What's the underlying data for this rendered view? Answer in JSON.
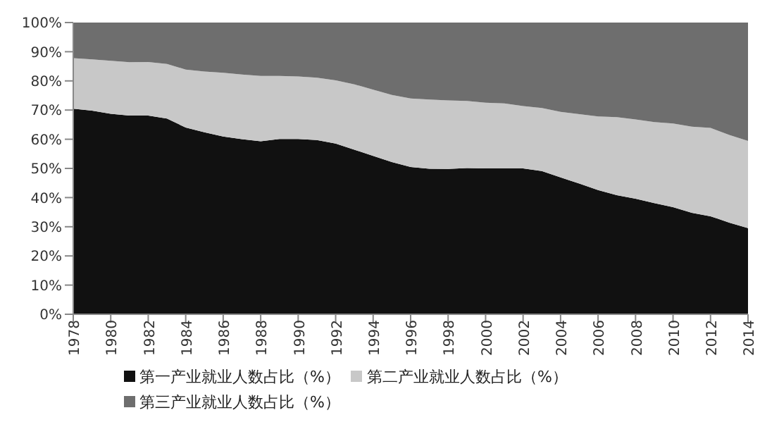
{
  "chart_data": {
    "type": "area",
    "stacked": true,
    "legend": "bottom",
    "grid": false,
    "x": [
      1978,
      1979,
      1980,
      1981,
      1982,
      1983,
      1984,
      1985,
      1986,
      1987,
      1988,
      1989,
      1990,
      1991,
      1992,
      1993,
      1994,
      1995,
      1996,
      1997,
      1998,
      1999,
      2000,
      2001,
      2002,
      2003,
      2004,
      2005,
      2006,
      2007,
      2008,
      2009,
      2010,
      2011,
      2012,
      2013,
      2014
    ],
    "xlim": [
      1978,
      2014
    ],
    "xticks": [
      1978,
      1980,
      1982,
      1984,
      1986,
      1988,
      1990,
      1992,
      1994,
      1996,
      1998,
      2000,
      2002,
      2004,
      2006,
      2008,
      2010,
      2012,
      2014
    ],
    "ylim": [
      0,
      100
    ],
    "yticks": [
      {
        "value": 0,
        "label": "0%"
      },
      {
        "value": 10,
        "label": "10%"
      },
      {
        "value": 20,
        "label": "20%"
      },
      {
        "value": 30,
        "label": "30%"
      },
      {
        "value": 40,
        "label": "40%"
      },
      {
        "value": 50,
        "label": "50%"
      },
      {
        "value": 60,
        "label": "60%"
      },
      {
        "value": 70,
        "label": "70%"
      },
      {
        "value": 80,
        "label": "80%"
      },
      {
        "value": 90,
        "label": "90%"
      },
      {
        "value": 100,
        "label": "100%"
      }
    ],
    "series": [
      {
        "name": "第一产业就业人数占比（%）",
        "color": "#111111",
        "values": [
          70.5,
          69.8,
          68.7,
          68.1,
          68.1,
          67.1,
          64.0,
          62.4,
          60.9,
          60.0,
          59.3,
          60.1,
          60.1,
          59.7,
          58.5,
          56.4,
          54.3,
          52.2,
          50.5,
          49.9,
          49.8,
          50.1,
          50.0,
          50.0,
          50.0,
          49.1,
          46.9,
          44.8,
          42.6,
          40.8,
          39.6,
          38.1,
          36.7,
          34.8,
          33.6,
          31.4,
          29.5
        ]
      },
      {
        "name": "第二产业就业人数占比（%）",
        "color": "#c8c8c8",
        "values": [
          17.3,
          17.6,
          18.2,
          18.3,
          18.4,
          18.7,
          19.9,
          20.8,
          21.9,
          22.2,
          22.4,
          21.6,
          21.4,
          21.4,
          21.7,
          22.4,
          22.7,
          23.0,
          23.5,
          23.7,
          23.5,
          23.0,
          22.5,
          22.3,
          21.4,
          21.6,
          22.5,
          23.8,
          25.2,
          26.8,
          27.2,
          27.8,
          28.7,
          29.5,
          30.3,
          30.1,
          29.9
        ]
      },
      {
        "name": "第三产业就业人数占比（%）",
        "color": "#6e6e6e",
        "values": [
          12.2,
          12.6,
          13.1,
          13.6,
          13.5,
          14.2,
          16.1,
          16.8,
          17.2,
          17.8,
          18.3,
          18.3,
          18.5,
          18.9,
          19.8,
          21.2,
          23.0,
          24.8,
          26.0,
          26.4,
          26.7,
          26.9,
          27.5,
          27.7,
          28.6,
          29.3,
          30.6,
          31.4,
          32.2,
          32.4,
          33.2,
          34.1,
          34.6,
          35.7,
          36.1,
          38.5,
          40.6
        ]
      }
    ]
  }
}
